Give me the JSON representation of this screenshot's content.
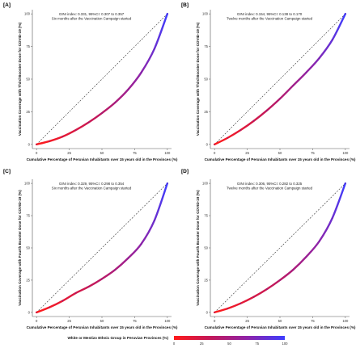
{
  "figure": {
    "legend": {
      "title": "White or Mestizo Ethnic Group in Peruvian Provinces (%)",
      "ticks": [
        "0",
        "25",
        "50",
        "75",
        "100"
      ],
      "colors": [
        "#ff1a1a",
        "#c2185b",
        "#8e24aa",
        "#3d3dff"
      ]
    }
  },
  "chart_data": [
    {
      "type": "line",
      "panel": "[A]",
      "annotation": [
        "GINI index: 0.331, 95%CI: 0.307 to 0.357",
        "Six months after the Vaccination Campaign started"
      ],
      "xlabel": "Cumulative Percentage of Peruvian Inhabitants over 15 years old in the Provinces (%)",
      "ylabel": "Vaccination Coverage with Third Booster Dose for COVID-19 (%)",
      "xlim": [
        0,
        100
      ],
      "ylim": [
        0,
        100
      ],
      "xticks": [
        "0",
        "25",
        "50",
        "75",
        "100"
      ],
      "yticks": [
        "0",
        "25",
        "50",
        "75",
        "100"
      ],
      "series": [
        {
          "x": [
            0,
            10,
            20,
            30,
            40,
            50,
            60,
            70,
            80,
            90,
            100
          ],
          "y": [
            0,
            2.5,
            6,
            11,
            17,
            24,
            32,
            42,
            55,
            73,
            100
          ]
        },
        {
          "x": [
            0,
            100
          ],
          "y": [
            0,
            100
          ],
          "style": "dashed"
        }
      ]
    },
    {
      "type": "line",
      "panel": "[B]",
      "annotation": [
        "GINI index: 0.154, 95%CI: 0.138 to 0.170",
        "Twelve months after the Vaccination Campaign started"
      ],
      "xlabel": "Cumulative Percentage of Peruvian Inhabitants over 15 years old in the Provinces (%)",
      "ylabel": "Vaccination Coverage with Third Booster Dose for COVID-19 (%)",
      "xlim": [
        0,
        100
      ],
      "ylim": [
        0,
        100
      ],
      "xticks": [
        "0",
        "25",
        "50",
        "75",
        "100"
      ],
      "yticks": [
        "0",
        "25",
        "50",
        "75",
        "100"
      ],
      "series": [
        {
          "x": [
            0,
            10,
            20,
            30,
            40,
            50,
            60,
            70,
            80,
            90,
            100
          ],
          "y": [
            0,
            5,
            11,
            18,
            26,
            35,
            45,
            55,
            66,
            80,
            100
          ]
        },
        {
          "x": [
            0,
            100
          ],
          "y": [
            0,
            100
          ],
          "style": "dashed"
        }
      ]
    },
    {
      "type": "line",
      "panel": "[C]",
      "annotation": [
        "GINI index: 0.329, 95%CI: 0.298 to 0.354",
        "Six months after the Vaccination Campaign started"
      ],
      "xlabel": "Cumulative Percentage of Peruvian Inhabitants over 15 years old in the Provinces (%)",
      "ylabel": "Vaccination Coverage with Fourth Booster Dose for COVID-19 (%)",
      "xlim": [
        0,
        100
      ],
      "ylim": [
        0,
        100
      ],
      "xticks": [
        "0",
        "25",
        "50",
        "75",
        "100"
      ],
      "yticks": [
        "0",
        "25",
        "50",
        "75",
        "100"
      ],
      "series": [
        {
          "x": [
            0,
            10,
            20,
            30,
            40,
            50,
            60,
            70,
            80,
            90,
            100
          ],
          "y": [
            0,
            4,
            9,
            15,
            20,
            26,
            33,
            42,
            53,
            71,
            100
          ]
        },
        {
          "x": [
            0,
            100
          ],
          "y": [
            0,
            100
          ],
          "style": "dashed"
        }
      ]
    },
    {
      "type": "line",
      "panel": "[D]",
      "annotation": [
        "GINI index: 0.306, 95%CI: 0.282 to 0.325",
        "Twelve months after the Vaccination Campaign started"
      ],
      "xlabel": "Cumulative Percentage of Peruvian Inhabitants over 15 years old in the Provinces (%)",
      "ylabel": "Vaccination Coverage with Fourth Booster Dose for COVID-19 (%)",
      "xlim": [
        0,
        100
      ],
      "ylim": [
        0,
        100
      ],
      "xticks": [
        "0",
        "25",
        "50",
        "75",
        "100"
      ],
      "yticks": [
        "0",
        "25",
        "50",
        "75",
        "100"
      ],
      "series": [
        {
          "x": [
            0,
            10,
            20,
            30,
            40,
            50,
            60,
            70,
            80,
            90,
            100
          ],
          "y": [
            0,
            3,
            7,
            12,
            18,
            25,
            33,
            43,
            55,
            73,
            100
          ]
        },
        {
          "x": [
            0,
            100
          ],
          "y": [
            0,
            100
          ],
          "style": "dashed"
        }
      ]
    }
  ]
}
